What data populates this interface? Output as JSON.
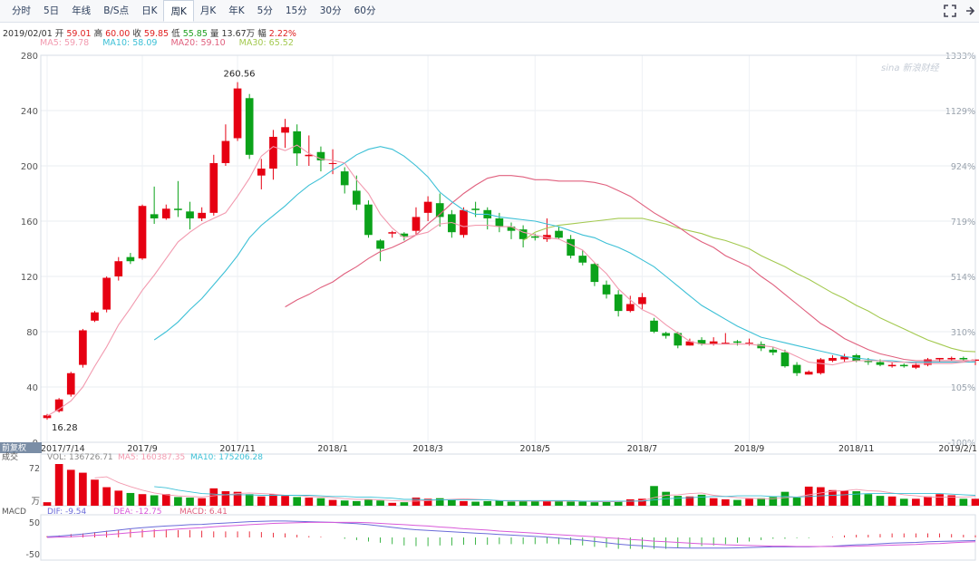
{
  "toolbar": {
    "tabs": [
      "分时",
      "5日",
      "年线",
      "B/S点",
      "日K",
      "周K",
      "月K",
      "年K",
      "5分",
      "15分",
      "30分",
      "60分"
    ],
    "active_tab": "周K",
    "fullscreen_icon": "expand-arrows-icon",
    "more_icon": "arrow-icon"
  },
  "info": {
    "date": "2019/02/01",
    "open_label": "开",
    "open": "59.01",
    "high_label": "高",
    "high": "60.00",
    "close_label": "收",
    "close": "59.85",
    "low_label": "低",
    "low": "55.85",
    "volume_label": "量",
    "volume": "13.67万",
    "change_label": "幅",
    "change": "2.22%"
  },
  "ma_legend": [
    {
      "label": "MA5: 59.78",
      "color": "#f29aaf"
    },
    {
      "label": "MA10: 58.09",
      "color": "#3cc0d6"
    },
    {
      "label": "MA20: 59.10",
      "color": "#e0607e"
    },
    {
      "label": "MA30: 65.52",
      "color": "#a3c94f"
    }
  ],
  "watermark": "sina 新浪财经",
  "volume_panel": {
    "title": "成交",
    "vol_label": "VOL: 136726.71",
    "ma5_label": "MA5: 160387.35",
    "ma10_label": "MA10: 175206.28",
    "top_label": "72",
    "unit_label": "万",
    "badge": "前复权"
  },
  "macd_panel": {
    "title": "MACD",
    "dif_label": "DIF: -9.54",
    "dea_label": "DEA: -12.75",
    "macd_label": "MACD: 6.41",
    "tick_top": "50",
    "tick_bottom": "-50"
  },
  "colors": {
    "up": "#e60012",
    "down": "#0ba21a",
    "vol_ma5": "#f29aaf",
    "vol_ma10": "#3cc0d6",
    "dif": "#6b6bd9",
    "dea": "#d95ad9"
  },
  "chart_data": {
    "type": "candlestick",
    "title": "",
    "ylim": [
      0,
      280
    ],
    "yticks": [
      0,
      40,
      80,
      120,
      160,
      200,
      240,
      280
    ],
    "pct_ticks": [
      "-100%",
      "105%",
      "310%",
      "514%",
      "719%",
      "924%",
      "1129%",
      "1333%"
    ],
    "xtick_labels": [
      "2017/7/14",
      "2017/9",
      "2017/11",
      "2018/1",
      "2018/3",
      "2018/5",
      "2018/7",
      "2018/9",
      "2018/11",
      "2019/2/1"
    ],
    "high_annotation": "260.56",
    "low_annotation": "16.28",
    "candles": [
      [
        17.5,
        19.5,
        16.28,
        20.5
      ],
      [
        22.5,
        31,
        21.5,
        32
      ],
      [
        34.5,
        50,
        33,
        51
      ],
      [
        56,
        81,
        54,
        82
      ],
      [
        88,
        94,
        87,
        95
      ],
      [
        96,
        119,
        94,
        120
      ],
      [
        120,
        131,
        117,
        134
      ],
      [
        134,
        131,
        129,
        137
      ],
      [
        133,
        171,
        132,
        172
      ],
      [
        165,
        162,
        158,
        185
      ],
      [
        162,
        169,
        161,
        172
      ],
      [
        169,
        168,
        163,
        189
      ],
      [
        167,
        162,
        154,
        174
      ],
      [
        162,
        166,
        160,
        170
      ],
      [
        166,
        202,
        164,
        208
      ],
      [
        202,
        218,
        200,
        230
      ],
      [
        220,
        256,
        218,
        260.56
      ],
      [
        249,
        208,
        205,
        252
      ],
      [
        193,
        198,
        183,
        205
      ],
      [
        198,
        221,
        190,
        226
      ],
      [
        224,
        228,
        213,
        234
      ],
      [
        225,
        209,
        200,
        230
      ],
      [
        207,
        208,
        200,
        222
      ],
      [
        210,
        204,
        196,
        214
      ],
      [
        202,
        202,
        194,
        212
      ],
      [
        196,
        186,
        180,
        199
      ],
      [
        182,
        172,
        168,
        193
      ],
      [
        172,
        150,
        148,
        175
      ],
      [
        146,
        140,
        131,
        147
      ],
      [
        151,
        152,
        148,
        153
      ],
      [
        151,
        149,
        146,
        152
      ],
      [
        153,
        163,
        150,
        170
      ],
      [
        166,
        174,
        160,
        178
      ],
      [
        173,
        163,
        156,
        180
      ],
      [
        165,
        152,
        148,
        168
      ],
      [
        150,
        168,
        148,
        170
      ],
      [
        169,
        168,
        163,
        174
      ],
      [
        168,
        162,
        154,
        170
      ],
      [
        162,
        156,
        152,
        166
      ],
      [
        156,
        153,
        147,
        159
      ],
      [
        154,
        147,
        141,
        157
      ],
      [
        149,
        148,
        146,
        151
      ],
      [
        147,
        150,
        145,
        162
      ],
      [
        153,
        148,
        147,
        156
      ],
      [
        147,
        135,
        133,
        150
      ],
      [
        135,
        130,
        128,
        139
      ],
      [
        129,
        116,
        113,
        130
      ],
      [
        114,
        107,
        104,
        117
      ],
      [
        107,
        95,
        91,
        110
      ],
      [
        95,
        100,
        94,
        106
      ],
      [
        100,
        105,
        96,
        108
      ],
      [
        88,
        80,
        79,
        90
      ],
      [
        79,
        77,
        75,
        80
      ],
      [
        79,
        70,
        68,
        80
      ],
      [
        70,
        73,
        70,
        75
      ],
      [
        74,
        71,
        70,
        76
      ],
      [
        71,
        73,
        70,
        76
      ],
      [
        71,
        72,
        71,
        79
      ],
      [
        73,
        72,
        70,
        74
      ],
      [
        72,
        72,
        70,
        75
      ],
      [
        71,
        68,
        66,
        73
      ],
      [
        67,
        65,
        63,
        69
      ],
      [
        65,
        55,
        54,
        67
      ],
      [
        56,
        50,
        48,
        58
      ],
      [
        49,
        51,
        49,
        52
      ],
      [
        50,
        60,
        49,
        61
      ],
      [
        59,
        61,
        58,
        63
      ],
      [
        60,
        62,
        58,
        64
      ],
      [
        63,
        59,
        58,
        64
      ],
      [
        59,
        58,
        56,
        61
      ],
      [
        58,
        56,
        55,
        60
      ],
      [
        55,
        56,
        54,
        58
      ],
      [
        56,
        55,
        54,
        57
      ],
      [
        54,
        56,
        53,
        58
      ],
      [
        56,
        60,
        55,
        61
      ],
      [
        60,
        61,
        58,
        61
      ],
      [
        60,
        61,
        59,
        62
      ],
      [
        61,
        60,
        59,
        62
      ],
      [
        59.01,
        59.85,
        55.85,
        60
      ]
    ],
    "ma5": [
      19,
      24,
      30,
      40,
      55,
      69,
      85,
      97,
      110,
      121,
      133,
      145,
      152,
      158,
      162,
      166,
      178,
      191,
      207,
      214,
      211,
      215,
      209,
      205,
      204,
      202,
      190,
      180,
      165,
      155,
      148,
      150,
      152,
      158,
      159,
      156,
      157,
      157,
      156,
      156,
      152,
      150,
      148,
      147,
      143,
      139,
      130,
      122,
      111,
      103,
      96,
      92,
      85,
      79,
      73,
      71,
      71,
      71,
      71,
      71,
      70,
      69,
      66,
      62,
      58,
      57,
      56,
      58,
      59,
      59,
      59,
      58,
      58,
      57,
      57,
      57,
      57,
      58,
      59.78
    ],
    "ma10": [
      null,
      null,
      null,
      null,
      null,
      null,
      null,
      null,
      null,
      74,
      80,
      87,
      96,
      104,
      114,
      124,
      135,
      148,
      157,
      164,
      171,
      179,
      186,
      191,
      197,
      202,
      208,
      212,
      214,
      212,
      207,
      200,
      192,
      181,
      174,
      168,
      165,
      165,
      163,
      162,
      161,
      160,
      158,
      156,
      153,
      150,
      148,
      144,
      141,
      137,
      132,
      127,
      120,
      113,
      106,
      99,
      94,
      89,
      84,
      80,
      76,
      74,
      72,
      70,
      68,
      66,
      64,
      62,
      61,
      60,
      59,
      59,
      58,
      58,
      58,
      58,
      58,
      58,
      58.09
    ],
    "ma20": [
      null,
      null,
      null,
      null,
      null,
      null,
      null,
      null,
      null,
      null,
      null,
      null,
      null,
      null,
      null,
      null,
      null,
      null,
      null,
      null,
      98,
      103,
      107,
      112,
      116,
      122,
      127,
      133,
      138,
      141,
      145,
      150,
      158,
      165,
      173,
      180,
      186,
      191,
      193,
      193,
      192,
      190,
      190,
      189,
      189,
      189,
      188,
      186,
      182,
      178,
      172,
      166,
      161,
      156,
      150,
      145,
      141,
      135,
      131,
      127,
      120,
      114,
      107,
      100,
      93,
      86,
      81,
      75,
      71,
      67,
      64,
      62,
      60,
      59,
      59,
      59,
      59,
      59,
      59.1
    ],
    "ma30": [
      null,
      null,
      null,
      null,
      null,
      null,
      null,
      null,
      null,
      null,
      null,
      null,
      null,
      null,
      null,
      null,
      null,
      null,
      null,
      null,
      null,
      null,
      null,
      null,
      null,
      null,
      null,
      null,
      null,
      null,
      null,
      null,
      null,
      null,
      null,
      null,
      null,
      null,
      null,
      null,
      146,
      152,
      155,
      157,
      158,
      159,
      160,
      161,
      162,
      162,
      162,
      160,
      158,
      155,
      153,
      151,
      148,
      146,
      143,
      140,
      135,
      131,
      127,
      122,
      118,
      113,
      108,
      104,
      99,
      95,
      90,
      86,
      82,
      78,
      74,
      71,
      68,
      66,
      65.52
    ],
    "volume_max": 72,
    "volume": [
      6,
      72,
      62,
      57,
      45,
      32,
      26,
      22,
      20,
      18,
      20,
      15,
      14,
      13,
      30,
      25,
      24,
      20,
      16,
      20,
      17,
      15,
      14,
      13,
      10,
      9,
      8,
      11,
      9,
      5,
      6,
      14,
      12,
      13,
      11,
      8,
      7,
      8,
      9,
      7,
      8,
      8,
      8,
      8,
      7,
      7,
      6,
      7,
      8,
      11,
      12,
      34,
      24,
      17,
      16,
      19,
      13,
      11,
      10,
      12,
      13,
      15,
      24,
      14,
      33,
      32,
      27,
      26,
      25,
      20,
      17,
      16,
      12,
      12,
      16,
      20,
      18,
      12,
      12
    ],
    "vol_ma5": [
      null,
      null,
      null,
      null,
      48,
      50,
      40,
      33,
      27,
      22,
      19,
      17,
      16,
      15,
      17,
      19,
      21,
      22,
      21,
      20,
      18,
      18,
      16,
      15,
      14,
      12,
      11,
      11,
      10,
      9,
      8,
      8,
      9,
      10,
      11,
      12,
      11,
      10,
      9,
      8,
      8,
      8,
      8,
      8,
      8,
      8,
      7,
      7,
      7,
      8,
      9,
      14,
      18,
      19,
      21,
      22,
      18,
      16,
      14,
      13,
      12,
      12,
      14,
      15,
      19,
      22,
      25,
      26,
      28,
      26,
      25,
      22,
      19,
      17,
      15,
      15,
      15,
      15,
      16
    ],
    "vol_ma10": [
      null,
      null,
      null,
      null,
      null,
      null,
      null,
      null,
      null,
      33,
      31,
      27,
      24,
      21,
      20,
      19,
      19,
      19,
      18,
      18,
      18,
      18,
      18,
      17,
      16,
      16,
      15,
      15,
      14,
      13,
      11,
      11,
      10,
      10,
      10,
      10,
      10,
      10,
      9,
      9,
      9,
      9,
      9,
      9,
      9,
      8,
      8,
      8,
      8,
      8,
      8,
      10,
      12,
      13,
      14,
      15,
      16,
      16,
      17,
      17,
      17,
      16,
      16,
      15,
      16,
      17,
      18,
      19,
      20,
      21,
      21,
      21,
      21,
      21,
      21,
      21,
      20,
      19,
      18
    ],
    "macd_dif": [
      2,
      4,
      7,
      10,
      14,
      18,
      22,
      26,
      29,
      32,
      34,
      36,
      38,
      39,
      41,
      43,
      45,
      47,
      48,
      49,
      49,
      48,
      47,
      46,
      45,
      43,
      41,
      38,
      34,
      30,
      26,
      23,
      21,
      19,
      17,
      15,
      13,
      11,
      9,
      7,
      5,
      3,
      1,
      -2,
      -5,
      -8,
      -12,
      -16,
      -20,
      -23,
      -25,
      -28,
      -30,
      -31,
      -32,
      -32,
      -32,
      -32,
      -31,
      -30,
      -29,
      -28,
      -28,
      -28,
      -28,
      -27,
      -26,
      -24,
      -22,
      -21,
      -19,
      -17,
      -16,
      -15,
      -13,
      -12,
      -11,
      -10,
      -9.54
    ],
    "macd_dea": [
      0,
      1,
      2,
      4,
      6,
      8,
      11,
      14,
      17,
      20,
      22,
      25,
      27,
      29,
      32,
      34,
      36,
      38,
      40,
      42,
      43,
      44,
      45,
      45,
      45,
      45,
      45,
      44,
      42,
      40,
      38,
      36,
      34,
      31,
      29,
      26,
      24,
      22,
      19,
      17,
      15,
      13,
      10,
      8,
      6,
      4,
      2,
      -1,
      -3,
      -6,
      -8,
      -11,
      -13,
      -15,
      -17,
      -19,
      -20,
      -22,
      -23,
      -24,
      -25,
      -26,
      -26,
      -27,
      -27,
      -27,
      -27,
      -27,
      -26,
      -25,
      -24,
      -23,
      -22,
      -21,
      -19,
      -18,
      -16,
      -14,
      -12.75
    ]
  }
}
